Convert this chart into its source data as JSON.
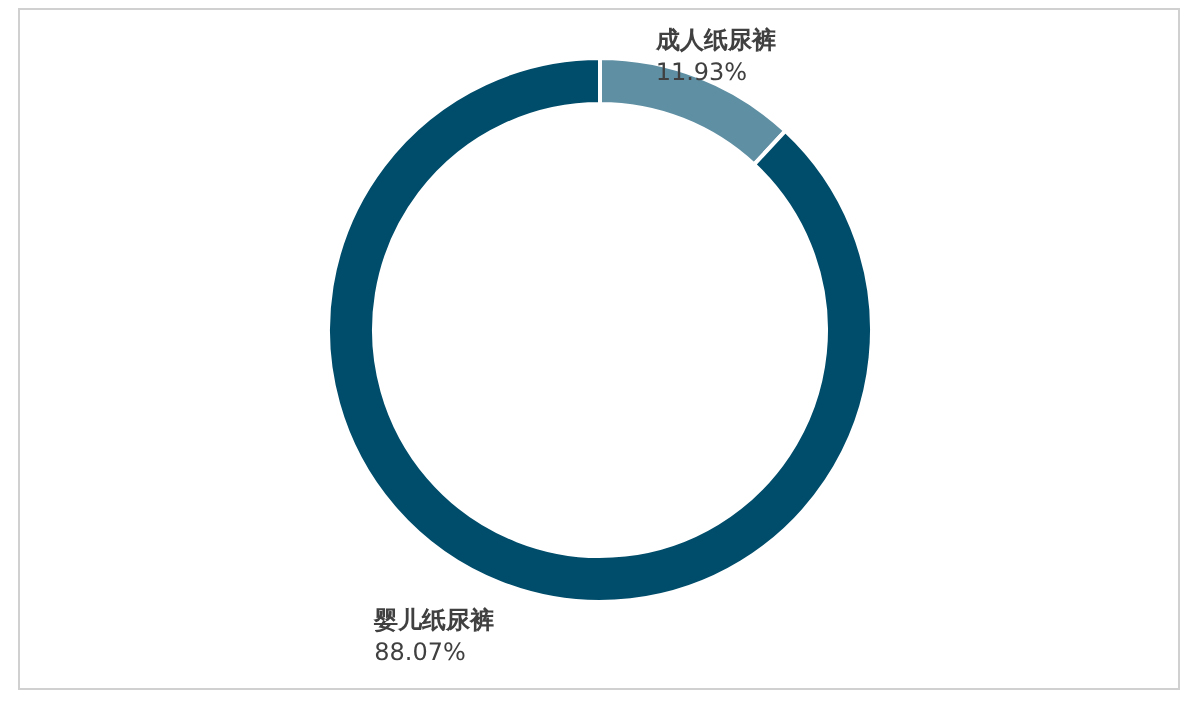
{
  "chart_data": {
    "type": "donut",
    "categories": [
      "成人纸尿裤",
      "婴儿纸尿裤"
    ],
    "values": [
      11.93,
      88.07
    ],
    "value_labels": [
      "11.93%",
      "88.07%"
    ],
    "colors": [
      "#5f8fa3",
      "#004d6b"
    ]
  }
}
